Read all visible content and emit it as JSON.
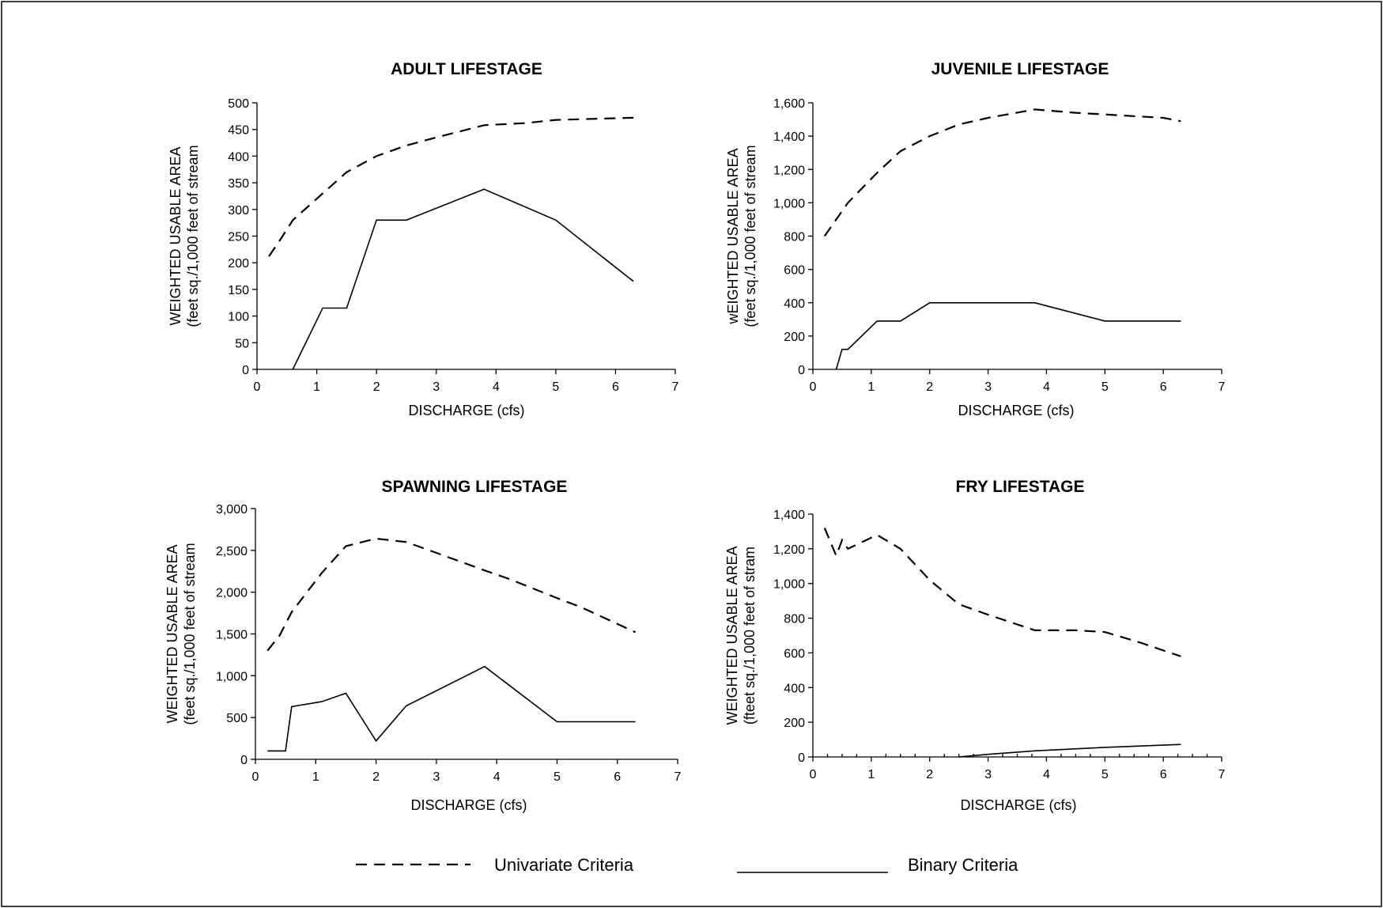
{
  "legend": {
    "univariate_label": "Univariate Criteria",
    "binary_label": "Binary Criteria"
  },
  "chart_data": [
    {
      "type": "line",
      "title": "ADULT LIFESTAGE",
      "xlabel": "DISCHARGE (cfs)",
      "ylabel_line1": "WEIGHTED USABLE AREA",
      "ylabel_line2": "(feet sq./1,000 feet of stream",
      "xlim": [
        0,
        7
      ],
      "ylim": [
        0,
        500
      ],
      "xticks": [
        0,
        1,
        2,
        3,
        4,
        5,
        6,
        7
      ],
      "yticks": [
        0,
        50,
        100,
        150,
        200,
        250,
        300,
        350,
        400,
        450,
        500
      ],
      "ytick_labels": [
        "0",
        "50",
        "100",
        "150",
        "200",
        "250",
        "300",
        "350",
        "400",
        "450",
        "500"
      ],
      "grid": false,
      "series": [
        {
          "name": "Univariate Criteria",
          "style": "dashed",
          "x": [
            0.2,
            0.4,
            0.6,
            1.1,
            1.5,
            2.0,
            2.5,
            3.0,
            3.8,
            4.5,
            5.0,
            6.3
          ],
          "y": [
            212,
            245,
            280,
            330,
            370,
            400,
            420,
            435,
            458,
            462,
            468,
            472
          ]
        },
        {
          "name": "Binary Criteria",
          "style": "solid",
          "x": [
            0.6,
            1.1,
            1.5,
            2.0,
            2.5,
            3.8,
            5.0,
            6.3
          ],
          "y": [
            0,
            115,
            115,
            280,
            280,
            338,
            280,
            165
          ]
        }
      ]
    },
    {
      "type": "line",
      "title": "JUVENILE LIFESTAGE",
      "xlabel": "DISCHARGE (cfs)",
      "ylabel_line1": "wEIGHTED USABLE AREA",
      "ylabel_line2": "(feet sq./1,000 feet of stream",
      "xlim": [
        0,
        7
      ],
      "ylim": [
        0,
        1600
      ],
      "xticks": [
        0,
        1,
        2,
        3,
        4,
        5,
        6,
        7
      ],
      "yticks": [
        0,
        200,
        400,
        600,
        800,
        1000,
        1200,
        1400,
        1600
      ],
      "ytick_labels": [
        "0",
        "200",
        "400",
        "600",
        "800",
        "1,000",
        "1,200",
        "1,400",
        "1,600"
      ],
      "grid": false,
      "series": [
        {
          "name": "Univariate Criteria",
          "style": "dashed",
          "x": [
            0.2,
            0.6,
            1.1,
            1.5,
            2.0,
            2.5,
            3.0,
            3.8,
            4.5,
            5.0,
            6.0,
            6.3
          ],
          "y": [
            800,
            1000,
            1180,
            1310,
            1400,
            1470,
            1510,
            1560,
            1540,
            1530,
            1510,
            1490
          ]
        },
        {
          "name": "Binary Criteria",
          "style": "solid",
          "x": [
            0.4,
            0.5,
            0.6,
            1.1,
            1.5,
            2.0,
            2.5,
            3.8,
            5.0,
            6.3
          ],
          "y": [
            0,
            120,
            120,
            290,
            290,
            400,
            400,
            400,
            290,
            290
          ]
        }
      ]
    },
    {
      "type": "line",
      "title": "SPAWNING LIFESTAGE",
      "xlabel": "DISCHARGE (cfs)",
      "ylabel_line1": "WEIGHTED USABLE AREA",
      "ylabel_line2": "(feet sq./1,000 feet of stream",
      "xlim": [
        0,
        7
      ],
      "ylim": [
        0,
        3000
      ],
      "xticks": [
        0,
        1,
        2,
        3,
        4,
        5,
        6,
        7
      ],
      "yticks": [
        0,
        500,
        1000,
        1500,
        2000,
        2500,
        3000
      ],
      "ytick_labels": [
        "0",
        "500",
        "1,000",
        "1,500",
        "2,000",
        "2,500",
        "3,000"
      ],
      "grid": false,
      "series": [
        {
          "name": "Univariate Criteria",
          "style": "dashed",
          "x": [
            0.2,
            0.4,
            0.6,
            1.1,
            1.5,
            2.0,
            2.5,
            3.0,
            3.8,
            4.2,
            5.0,
            5.4,
            6.3
          ],
          "y": [
            1300,
            1480,
            1760,
            2230,
            2550,
            2640,
            2600,
            2470,
            2260,
            2160,
            1930,
            1820,
            1520
          ]
        },
        {
          "name": "Binary Criteria",
          "style": "solid",
          "x": [
            0.2,
            0.5,
            0.6,
            1.1,
            1.5,
            2.0,
            2.5,
            3.8,
            5.0,
            6.3
          ],
          "y": [
            100,
            100,
            630,
            690,
            790,
            220,
            640,
            1110,
            450,
            450
          ]
        }
      ]
    },
    {
      "type": "line",
      "title": "FRY LIFESTAGE",
      "xlabel": "DISCHARGE (cfs)",
      "ylabel_line1": "WEIGHTED USABLE AREA",
      "ylabel_line2": "(fteet sq./1,000 feet of stram",
      "xlim": [
        0,
        7
      ],
      "ylim": [
        0,
        1400
      ],
      "xticks": [
        0,
        1,
        2,
        3,
        4,
        5,
        6,
        7
      ],
      "yticks": [
        0,
        200,
        400,
        600,
        800,
        1000,
        1200,
        1400
      ],
      "ytick_labels": [
        "0",
        "200",
        "400",
        "600",
        "800",
        "1,000",
        "1,200",
        "1,400"
      ],
      "grid": false,
      "series": [
        {
          "name": "Univariate Criteria",
          "style": "dashed",
          "x": [
            0.2,
            0.4,
            0.5,
            0.6,
            1.1,
            1.5,
            2.0,
            2.5,
            3.0,
            3.8,
            4.5,
            5.0,
            5.6,
            6.3
          ],
          "y": [
            1320,
            1160,
            1250,
            1200,
            1280,
            1200,
            1020,
            880,
            820,
            730,
            730,
            720,
            660,
            580
          ]
        },
        {
          "name": "Binary Criteria",
          "style": "solid",
          "x": [
            2.5,
            3.0,
            3.8,
            5.0,
            6.3
          ],
          "y": [
            0,
            15,
            35,
            55,
            72
          ]
        }
      ]
    }
  ]
}
